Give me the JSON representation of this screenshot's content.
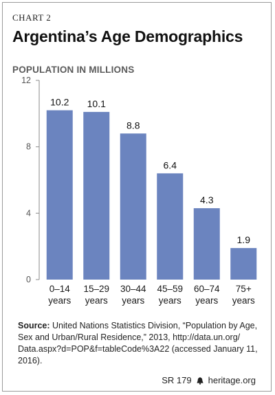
{
  "header": {
    "chart_number": "CHART 2",
    "title": "Argentina’s Age Demographics"
  },
  "chart_data": {
    "type": "bar",
    "title": "Argentina’s Age Demographics",
    "ylabel": "POPULATION IN MILLIONS",
    "xlabel": "",
    "categories": [
      [
        "0–14",
        "years"
      ],
      [
        "15–29",
        "years"
      ],
      [
        "30–44",
        "years"
      ],
      [
        "45–59",
        "years"
      ],
      [
        "60–74",
        "years"
      ],
      [
        "75+",
        "years"
      ]
    ],
    "values": [
      10.2,
      10.1,
      8.8,
      6.4,
      4.3,
      1.9
    ],
    "value_labels": [
      "10.2",
      "10.1",
      "8.8",
      "6.4",
      "4.3",
      "1.9"
    ],
    "ylim": [
      0,
      12
    ],
    "yticks": [
      0,
      4,
      8,
      12
    ],
    "bar_color": "#6b84bf",
    "grid": false
  },
  "source": {
    "label": "Source:",
    "text": " United Nations Statistics Division, “Population by Age, Sex and Urban/Rural Residence,” 2013, http://data.un.org/ Data.aspx?d=POP&f=tableCode%3A22 (accessed January 11, 2016)."
  },
  "footer": {
    "report_id": "SR 179",
    "site": "heritage.org"
  }
}
